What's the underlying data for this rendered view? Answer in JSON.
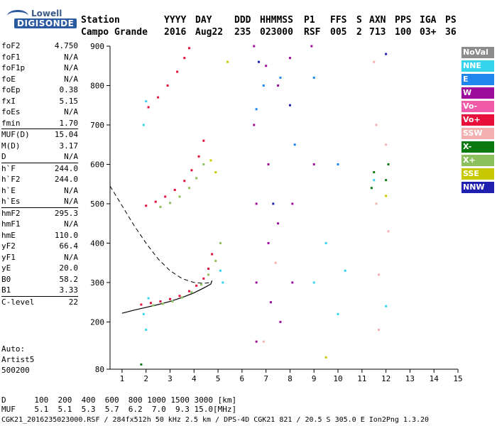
{
  "logo": {
    "brand": "Lowell",
    "product": "DIGISONDE"
  },
  "header": {
    "labels": [
      "Station",
      "YYYY",
      "DAY",
      "DDD",
      "HHMMSS",
      "P1",
      "FFS",
      "S",
      "AXN",
      "PPS",
      "IGA",
      "PS"
    ],
    "values": [
      "Campo Grande",
      "2016",
      "Aug22",
      "235",
      "023000",
      "RSF",
      "005",
      "2",
      "713",
      "100",
      "03+",
      "36"
    ]
  },
  "params": [
    {
      "name": "foF2",
      "value": "4.750"
    },
    {
      "name": "foF1",
      "value": "N/A"
    },
    {
      "name": "foF1p",
      "value": "N/A"
    },
    {
      "name": "foE",
      "value": "N/A"
    },
    {
      "name": "foEp",
      "value": "0.38"
    },
    {
      "name": "fxI",
      "value": "5.15"
    },
    {
      "name": "foEs",
      "value": "N/A"
    },
    {
      "name": "fmin",
      "value": "1.70"
    },
    {
      "name": "MUF(D)",
      "value": "15.04",
      "sep": true
    },
    {
      "name": "M(D)",
      "value": "3.17"
    },
    {
      "name": "D",
      "value": "N/A"
    },
    {
      "name": "h`F",
      "value": "244.0",
      "sep": true
    },
    {
      "name": "h`F2",
      "value": "244.0"
    },
    {
      "name": "h`E",
      "value": "N/A"
    },
    {
      "name": "h`Es",
      "value": "N/A"
    },
    {
      "name": "hmF2",
      "value": "295.3",
      "sep": true
    },
    {
      "name": "hmF1",
      "value": "N/A"
    },
    {
      "name": "hmE",
      "value": "110.0"
    },
    {
      "name": "yF2",
      "value": "66.4"
    },
    {
      "name": "yF1",
      "value": "N/A"
    },
    {
      "name": "yE",
      "value": "20.0"
    },
    {
      "name": "B0",
      "value": "58.2"
    },
    {
      "name": "B1",
      "value": "3.33"
    },
    {
      "name": "C-level",
      "value": "22",
      "sep": true
    }
  ],
  "auto": {
    "line1": "Auto:",
    "line2": "Artist5",
    "line3": "500200"
  },
  "legend": [
    {
      "label": "NoVal",
      "color": "#8c8c8c"
    },
    {
      "label": "NNE",
      "color": "#35d4ee"
    },
    {
      "label": "E",
      "color": "#1f86f0"
    },
    {
      "label": "W",
      "color": "#9c0d9c"
    },
    {
      "label": "Vo-",
      "color": "#f05aa8"
    },
    {
      "label": "Vo+",
      "color": "#e8103a"
    },
    {
      "label": "SSW",
      "color": "#f4b0b0"
    },
    {
      "label": "X-",
      "color": "#0a7a10"
    },
    {
      "label": "X+",
      "color": "#8cc05c"
    },
    {
      "label": "SSE",
      "color": "#c8c800"
    },
    {
      "label": "NNW",
      "color": "#2020b0"
    }
  ],
  "footer": {
    "row1_label": "D",
    "row1_values": [
      "100",
      "200",
      "400",
      "600",
      "800",
      "1000",
      "1500",
      "3000",
      "[km]"
    ],
    "row2_label": "MUF",
    "row2_values": [
      "5.1",
      "5.1",
      "5.3",
      "5.7",
      "6.2",
      "7.0",
      "9.3",
      "15.0",
      "[MHz]"
    ],
    "status": "CGK21_2016235023000.RSF / 284fx512h 50 kHz 2.5 km / DPS-4D CGK21 821 / 20.5 S 305.0 E Ion2Png 1.3.20"
  },
  "chart_data": {
    "type": "scatter",
    "title": "",
    "xlabel": "",
    "ylabel": "",
    "xlim": [
      0.5,
      15
    ],
    "ylim": [
      80,
      900
    ],
    "x_ticks": [
      1,
      2,
      3,
      4,
      5,
      6,
      7,
      8,
      9,
      10,
      11,
      12,
      13,
      14,
      15
    ],
    "y_ticks": [
      80,
      200,
      300,
      400,
      500,
      600,
      700,
      800,
      900
    ],
    "grid": false,
    "legend_position": "right",
    "series": [
      {
        "name": "Vo+",
        "color": "#e8103a",
        "points": [
          [
            1.8,
            244
          ],
          [
            2.2,
            248
          ],
          [
            2.6,
            252
          ],
          [
            3.0,
            258
          ],
          [
            3.4,
            266
          ],
          [
            3.8,
            278
          ],
          [
            4.1,
            292
          ],
          [
            4.4,
            310
          ],
          [
            4.6,
            335
          ],
          [
            4.75,
            372
          ],
          [
            2.0,
            495
          ],
          [
            2.4,
            505
          ],
          [
            2.8,
            518
          ],
          [
            3.2,
            535
          ],
          [
            3.6,
            558
          ],
          [
            3.9,
            585
          ],
          [
            4.2,
            620
          ],
          [
            4.4,
            660
          ],
          [
            2.1,
            745
          ],
          [
            2.5,
            770
          ],
          [
            2.9,
            800
          ],
          [
            3.3,
            835
          ],
          [
            3.6,
            870
          ],
          [
            3.8,
            895
          ]
        ]
      },
      {
        "name": "X+",
        "color": "#8cc05c",
        "points": [
          [
            2.3,
            242
          ],
          [
            2.7,
            246
          ],
          [
            3.1,
            252
          ],
          [
            3.5,
            262
          ],
          [
            3.9,
            275
          ],
          [
            4.3,
            295
          ],
          [
            4.6,
            320
          ],
          [
            4.9,
            355
          ],
          [
            5.1,
            400
          ],
          [
            2.6,
            492
          ],
          [
            3.0,
            502
          ],
          [
            3.4,
            518
          ],
          [
            3.8,
            540
          ],
          [
            4.1,
            565
          ],
          [
            4.4,
            600
          ]
        ]
      },
      {
        "name": "W",
        "color": "#9c0d9c",
        "points": [
          [
            6.5,
            900
          ],
          [
            6.5,
            700
          ],
          [
            6.6,
            500
          ],
          [
            6.6,
            300
          ],
          [
            6.6,
            150
          ],
          [
            7.0,
            850
          ],
          [
            7.1,
            600
          ],
          [
            7.1,
            400
          ],
          [
            7.2,
            250
          ],
          [
            7.5,
            800
          ],
          [
            7.5,
            450
          ],
          [
            7.6,
            200
          ],
          [
            8.0,
            870
          ],
          [
            8.1,
            500
          ],
          [
            8.1,
            300
          ],
          [
            8.9,
            900
          ],
          [
            9.0,
            600
          ]
        ]
      },
      {
        "name": "NNE",
        "color": "#35d4ee",
        "points": [
          [
            1.9,
            220
          ],
          [
            2.0,
            180
          ],
          [
            2.1,
            260
          ],
          [
            1.9,
            700
          ],
          [
            2.0,
            760
          ],
          [
            5.1,
            330
          ],
          [
            5.2,
            300
          ],
          [
            9.0,
            300
          ],
          [
            9.5,
            400
          ],
          [
            10.0,
            220
          ],
          [
            10.3,
            330
          ],
          [
            11.5,
            560
          ],
          [
            12.0,
            240
          ]
        ]
      },
      {
        "name": "SSW",
        "color": "#f4b0b0",
        "points": [
          [
            6.9,
            150
          ],
          [
            7.4,
            350
          ],
          [
            11.5,
            860
          ],
          [
            11.6,
            700
          ],
          [
            11.6,
            500
          ],
          [
            11.7,
            320
          ],
          [
            11.7,
            180
          ],
          [
            12.0,
            650
          ],
          [
            12.1,
            430
          ]
        ]
      },
      {
        "name": "X-",
        "color": "#0a7a10",
        "points": [
          [
            11.4,
            540
          ],
          [
            11.5,
            580
          ],
          [
            12.0,
            560
          ],
          [
            12.1,
            600
          ],
          [
            1.8,
            92
          ]
        ]
      },
      {
        "name": "SSE",
        "color": "#c8c800",
        "points": [
          [
            4.7,
            610
          ],
          [
            4.9,
            580
          ],
          [
            5.4,
            860
          ],
          [
            9.5,
            110
          ],
          [
            12.0,
            520
          ]
        ]
      },
      {
        "name": "E",
        "color": "#1f86f0",
        "points": [
          [
            6.6,
            740
          ],
          [
            6.9,
            800
          ],
          [
            7.6,
            820
          ],
          [
            8.2,
            650
          ],
          [
            9.0,
            820
          ],
          [
            10.0,
            600
          ]
        ]
      },
      {
        "name": "NNW",
        "color": "#2020b0",
        "points": [
          [
            6.7,
            860
          ],
          [
            7.3,
            500
          ],
          [
            8.0,
            750
          ],
          [
            12.0,
            880
          ]
        ]
      }
    ],
    "model_curve_solid": [
      [
        1.0,
        222
      ],
      [
        1.5,
        230
      ],
      [
        2.0,
        237
      ],
      [
        2.5,
        244
      ],
      [
        3.0,
        252
      ],
      [
        3.5,
        262
      ],
      [
        4.0,
        274
      ],
      [
        4.4,
        286
      ],
      [
        4.7,
        296
      ],
      [
        4.75,
        305
      ]
    ],
    "model_curve_dashed": [
      [
        0.5,
        545
      ],
      [
        1.0,
        495
      ],
      [
        1.5,
        445
      ],
      [
        2.0,
        400
      ],
      [
        2.5,
        360
      ],
      [
        3.0,
        330
      ],
      [
        3.5,
        310
      ],
      [
        4.0,
        300
      ],
      [
        4.4,
        298
      ],
      [
        4.75,
        300
      ]
    ]
  }
}
